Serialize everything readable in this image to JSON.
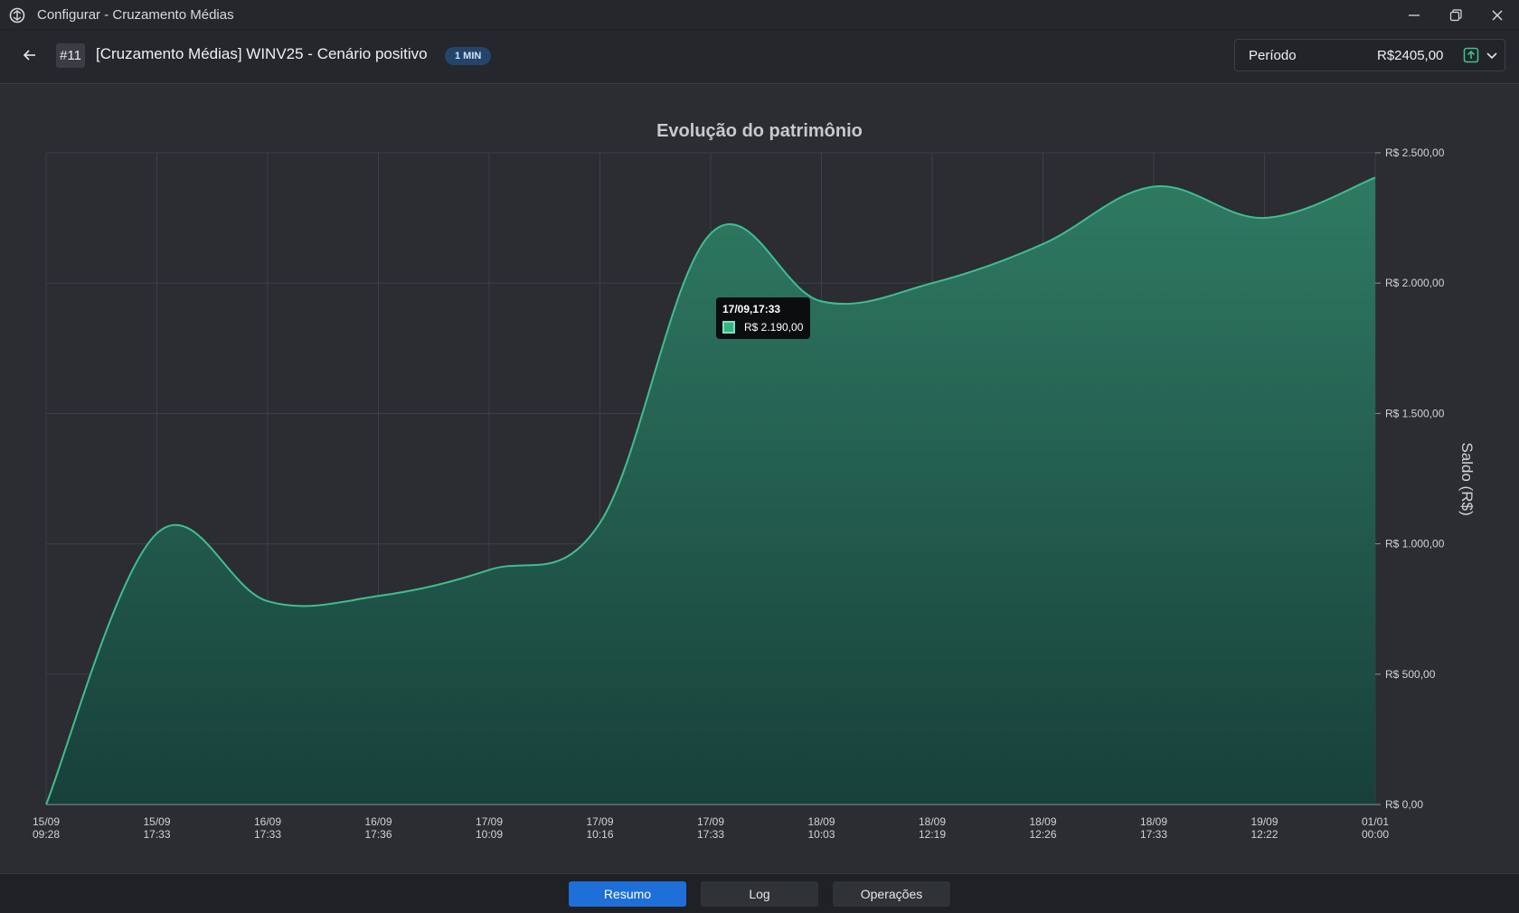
{
  "window": {
    "title": "Configurar - Cruzamento Médias"
  },
  "header": {
    "id_badge": "#11",
    "title": "[Cruzamento Médias] WINV25 - Cenário positivo",
    "timeframe_badge": "1 MIN",
    "period_label": "Período",
    "period_value": "R$2405,00"
  },
  "tooltip": {
    "date": "17/09,17:33",
    "value": "R$ 2.190,00"
  },
  "tabs": [
    {
      "label": "Resumo",
      "active": true
    },
    {
      "label": "Log",
      "active": false
    },
    {
      "label": "Operações",
      "active": false
    }
  ],
  "colors": {
    "line": "#3fbf8c",
    "fill_top": "#2f7a62",
    "fill_bottom": "#17403a",
    "grid": "#3d4048",
    "accent_button": "#1f6fd8"
  },
  "chart_data": {
    "type": "area",
    "title": "Evolução do patrimônio",
    "ylabel": "Saldo (R$)",
    "xlabel": "",
    "ylim": [
      0,
      2500
    ],
    "ytick_values": [
      0,
      500,
      1000,
      1500,
      2000,
      2500
    ],
    "ytick_labels": [
      "R$ 0,00",
      "R$ 500,00",
      "R$ 1.000,00",
      "R$ 1.500,00",
      "R$ 2.000,00",
      "R$ 2.500,00"
    ],
    "x_labels": [
      [
        "15/09",
        "09:28"
      ],
      [
        "15/09",
        "17:33"
      ],
      [
        "16/09",
        "17:33"
      ],
      [
        "16/09",
        "17:36"
      ],
      [
        "17/09",
        "10:09"
      ],
      [
        "17/09",
        "10:16"
      ],
      [
        "17/09",
        "17:33"
      ],
      [
        "18/09",
        "10:03"
      ],
      [
        "18/09",
        "12:19"
      ],
      [
        "18/09",
        "12:26"
      ],
      [
        "18/09",
        "17:33"
      ],
      [
        "19/09",
        "12:22"
      ],
      [
        "01/01",
        "00:00"
      ]
    ],
    "series": [
      {
        "values": [
          0,
          1040,
          780,
          800,
          900,
          1080,
          2190,
          1930,
          2000,
          2150,
          2370,
          2250,
          2405
        ]
      }
    ],
    "grid": true,
    "y_axis_position": "right"
  }
}
